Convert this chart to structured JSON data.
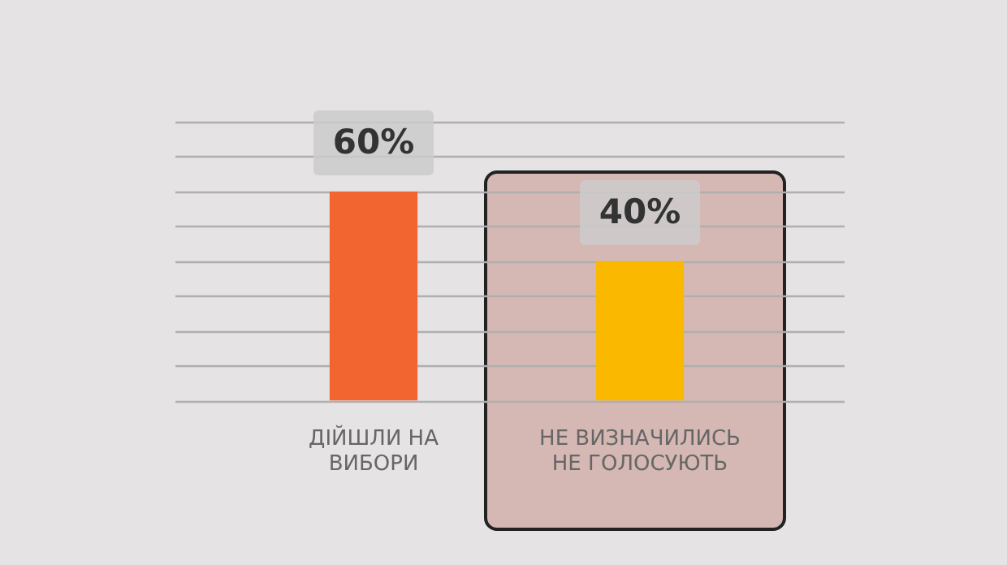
{
  "chart_data": {
    "type": "bar",
    "categories": [
      "ДІЙШЛИ НА\nВИБОРИ",
      "НЕ ВИЗНАЧИЛИСЬ\nНЕ ГОЛОСУЮТЬ"
    ],
    "values": [
      60,
      40
    ],
    "colors": [
      "#f26430",
      "#fbb800"
    ],
    "value_labels": [
      "60%",
      "40%"
    ],
    "ylim": [
      0,
      80
    ],
    "yticks": [
      {
        "value": 0,
        "label": null
      },
      {
        "value": 10,
        "label": null
      },
      {
        "value": 20,
        "label": null
      },
      {
        "value": 30,
        "label": null
      },
      {
        "value": 40,
        "label": null
      },
      {
        "value": 50,
        "label": null
      },
      {
        "value": 60,
        "label": null
      },
      {
        "value": 70,
        "label": null
      },
      {
        "value": 80,
        "label": null
      }
    ],
    "grid": "y",
    "tick_labels": "x",
    "legend": false
  }
}
